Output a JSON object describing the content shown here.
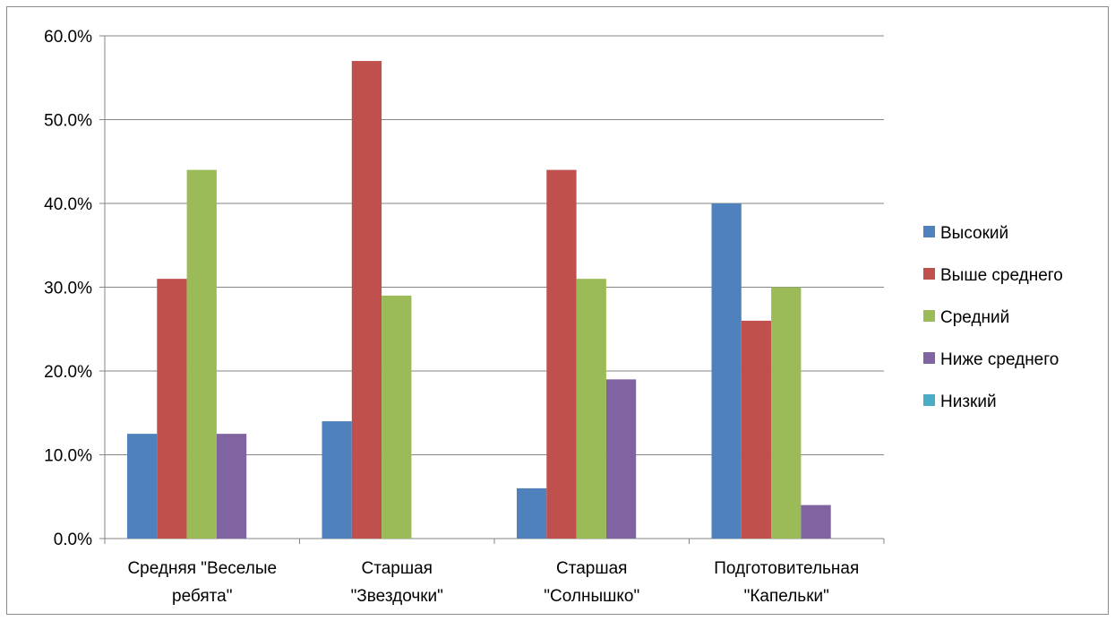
{
  "chart_data": {
    "type": "bar",
    "title": "",
    "xlabel": "",
    "ylabel": "",
    "ylim": [
      0,
      60
    ],
    "y_ticks": [
      "0.0%",
      "10.0%",
      "20.0%",
      "30.0%",
      "40.0%",
      "50.0%",
      "60.0%"
    ],
    "y_tick_values": [
      0,
      10,
      20,
      30,
      40,
      50,
      60
    ],
    "grid": "horizontal",
    "legend_position": "right",
    "categories": [
      [
        "Средняя \"Веселые",
        "ребята\""
      ],
      [
        "Старшая",
        "\"Звездочки\""
      ],
      [
        "Старшая",
        "\"Солнышко\""
      ],
      [
        "Подготовительная",
        "\"Капельки\""
      ]
    ],
    "series": [
      {
        "name": "Высокий",
        "color": "#4F81BD",
        "values": [
          12.5,
          14,
          6,
          40
        ]
      },
      {
        "name": "Выше среднего",
        "color": "#C0504D",
        "values": [
          31,
          57,
          44,
          26
        ]
      },
      {
        "name": "Средний",
        "color": "#9BBB59",
        "values": [
          44,
          29,
          31,
          30
        ]
      },
      {
        "name": "Ниже среднего",
        "color": "#8064A2",
        "values": [
          12.5,
          0,
          19,
          4
        ]
      },
      {
        "name": "Низкий",
        "color": "#4BACC6",
        "values": [
          0,
          0,
          0,
          0
        ]
      }
    ]
  }
}
